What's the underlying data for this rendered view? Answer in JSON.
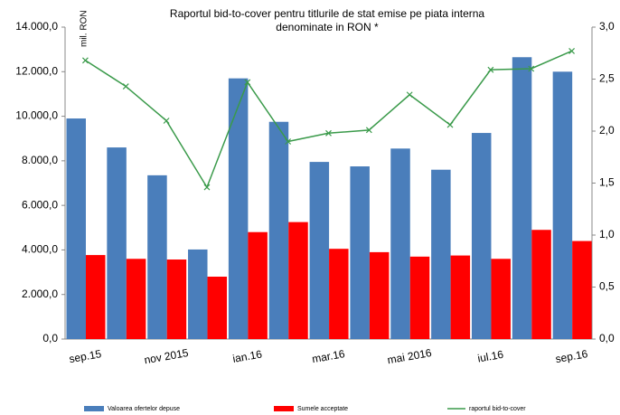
{
  "chart_data": {
    "type": "bar-line",
    "title": [
      "Raportul bid-to-cover pentru titlurile de stat emise pe piata interna",
      "denominate in RON *"
    ],
    "y_unit": "mil. RON",
    "categories": [
      "sep.15",
      null,
      "nov 2015",
      null,
      "ian.16",
      null,
      "mar.16",
      null,
      "mai  2016",
      null,
      "iul.16",
      null,
      "sep.16"
    ],
    "series": [
      {
        "name": "Valoarea ofertelor depuse",
        "color": "#4a7ebb",
        "values": [
          9900,
          8600,
          7350,
          4020,
          11700,
          9750,
          7950,
          7750,
          8550,
          7600,
          9250,
          12650,
          12000
        ]
      },
      {
        "name": "Sumele acceptate",
        "color": "#ff0000",
        "values": [
          3770,
          3600,
          3570,
          2800,
          4800,
          5250,
          4050,
          3900,
          3700,
          3750,
          3600,
          4900,
          4400
        ]
      },
      {
        "name": "raportul bid-to-cover",
        "color": "#3a9a4a",
        "axis": "y2",
        "values": [
          2.68,
          2.43,
          2.1,
          1.46,
          2.47,
          1.9,
          1.98,
          2.01,
          2.35,
          2.06,
          2.59,
          2.6,
          2.77
        ]
      }
    ],
    "ylim": [
      0,
      14000
    ],
    "yticks": [
      {
        "value": 0,
        "label": "0,0"
      },
      {
        "value": 2000,
        "label": "2.000,0"
      },
      {
        "value": 4000,
        "label": "4.000,0"
      },
      {
        "value": 6000,
        "label": "6.000,0"
      },
      {
        "value": 8000,
        "label": "8.000,0"
      },
      {
        "value": 10000,
        "label": "10.000,0"
      },
      {
        "value": 12000,
        "label": "12.000,0"
      },
      {
        "value": 14000,
        "label": "14.000,0"
      }
    ],
    "y2lim": [
      0,
      3
    ],
    "y2ticks": [
      {
        "value": 0,
        "label": "0,0"
      },
      {
        "value": 0.5,
        "label": "0,5"
      },
      {
        "value": 1,
        "label": "1,0"
      },
      {
        "value": 1.5,
        "label": "1,5"
      },
      {
        "value": 2,
        "label": "2,0"
      },
      {
        "value": 2.5,
        "label": "2,5"
      },
      {
        "value": 3,
        "label": "3,0"
      }
    ]
  }
}
